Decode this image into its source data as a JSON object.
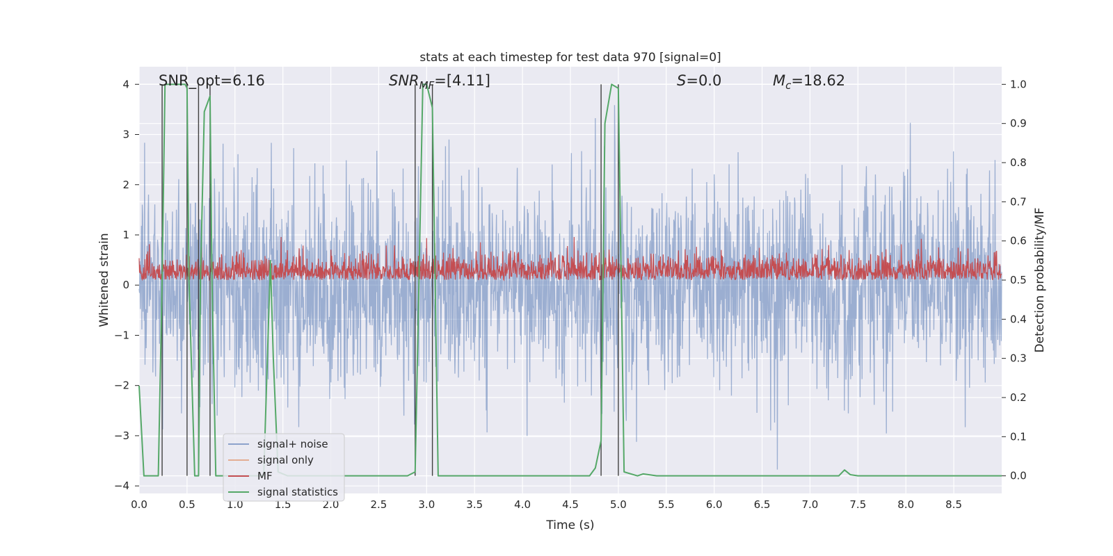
{
  "chart_data": {
    "type": "line",
    "title": "stats at each timestep for test data 970 [signal=0]",
    "xlabel": "Time (s)",
    "ylabel_left": "Whitened strain",
    "ylabel_right": "Detection probability/MF",
    "xlim": [
      0.0,
      9.0
    ],
    "ylim_left": [
      -4.15,
      4.35
    ],
    "ylim_right": [
      -0.045,
      1.045
    ],
    "x_ticks": [
      "0.0",
      "0.5",
      "1.0",
      "1.5",
      "2.0",
      "2.5",
      "3.0",
      "3.5",
      "4.0",
      "4.5",
      "5.0",
      "5.5",
      "6.0",
      "6.5",
      "7.0",
      "7.5",
      "8.0",
      "8.5"
    ],
    "y_ticks_left": [
      "4",
      "3",
      "2",
      "1",
      "0",
      "−1",
      "−2",
      "−3",
      "−4"
    ],
    "y_ticks_right": [
      "1.0",
      "0.9",
      "0.8",
      "0.7",
      "0.6",
      "0.5",
      "0.4",
      "0.3",
      "0.2",
      "0.1",
      "0.0"
    ],
    "grid": true,
    "legend_position": "lower-left",
    "annotations": {
      "snr_opt": "SNR_opt=6.16",
      "snr_mf_main": "SNR",
      "snr_mf_sub": "MF",
      "snr_mf_value": "=[4.11]",
      "s_label": "S",
      "s_value": "=0.0",
      "mc_main": "M",
      "mc_sub": "c",
      "mc_value": "=18.62"
    },
    "series": [
      {
        "name": "signal+ noise",
        "axis": "left",
        "color": "#4c72b0",
        "alpha": 0.5,
        "description_range": [
          -3.9,
          4.0
        ]
      },
      {
        "name": "signal only",
        "axis": "left",
        "color": "#dd8452",
        "alpha": 0.5,
        "values": []
      },
      {
        "name": "MF",
        "axis": "right",
        "color": "#c44e52",
        "description_range": [
          0.49,
          0.61
        ]
      },
      {
        "name": "signal statistics",
        "axis": "right",
        "color": "#55a868",
        "x": [
          0.0,
          0.05,
          0.1,
          0.2,
          0.24,
          0.27,
          0.3,
          0.48,
          0.5,
          0.52,
          0.58,
          0.62,
          0.64,
          0.68,
          0.74,
          0.76,
          0.8,
          1.2,
          1.3,
          1.37,
          1.4,
          1.45,
          1.55,
          1.7,
          2.5,
          2.8,
          2.88,
          2.92,
          2.96,
          3.0,
          3.06,
          3.12,
          3.2,
          4.5,
          4.7,
          4.76,
          4.82,
          4.86,
          4.93,
          5.0,
          5.06,
          5.2,
          5.26,
          5.4,
          7.3,
          7.36,
          7.42,
          7.5,
          9.0
        ],
        "y": [
          0.23,
          0.0,
          0.0,
          0.0,
          0.5,
          1.0,
          1.0,
          1.0,
          0.99,
          0.5,
          0.0,
          0.0,
          0.5,
          0.93,
          0.97,
          0.5,
          0.0,
          0.0,
          0.0,
          0.55,
          0.3,
          0.01,
          0.0,
          0.0,
          0.0,
          0.0,
          0.01,
          0.5,
          1.0,
          1.0,
          0.94,
          0.0,
          0.0,
          0.0,
          0.0,
          0.02,
          0.09,
          0.9,
          1.0,
          0.99,
          0.01,
          0.0,
          0.005,
          0.0,
          0.0,
          0.015,
          0.003,
          0.0,
          0.0
        ]
      }
    ],
    "detection_markers_x": [
      0.24,
      0.5,
      0.62,
      0.74,
      2.88,
      3.06,
      4.82,
      5.0
    ]
  },
  "colors": {
    "axes_bg": "#eaeaf2",
    "grid": "#ffffff",
    "noise": "#4c72b0",
    "signal_only": "#dd8452",
    "mf": "#c44e52",
    "stats": "#55a868",
    "markers": "#404040"
  }
}
